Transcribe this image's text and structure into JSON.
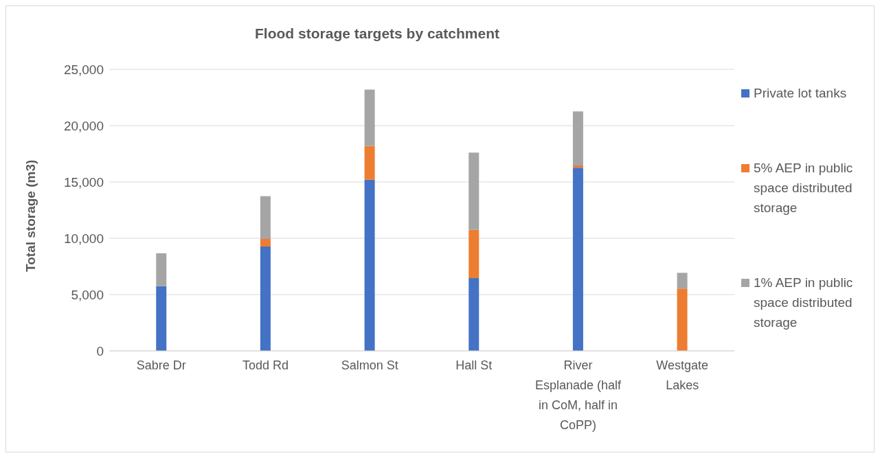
{
  "chart_data": {
    "type": "bar",
    "title": "Flood storage targets by catchment",
    "ylabel": "Total storage (m3)",
    "categories": [
      "Sabre Dr",
      "Todd Rd",
      "Salmon St",
      "Hall St",
      "River Esplanade (half in CoM, half in CoPP)",
      "Westgate Lakes"
    ],
    "stacked": true,
    "series": [
      {
        "name": "Private lot tanks",
        "color": "#4472c4",
        "values": [
          5750,
          9270,
          15200,
          6470,
          16270,
          0
        ]
      },
      {
        "name": "5% AEP in public space distributed storage",
        "color": "#ed7d31",
        "values": [
          0,
          670,
          3000,
          4270,
          200,
          5530
        ]
      },
      {
        "name": "1% AEP in public space distributed storage",
        "color": "#a5a5a5",
        "values": [
          2920,
          3800,
          5000,
          6870,
          4800,
          1400
        ]
      }
    ],
    "ylim": [
      0,
      25000
    ],
    "yticks": [
      {
        "value": 0,
        "label": "0"
      },
      {
        "value": 5000,
        "label": "5,000"
      },
      {
        "value": 10000,
        "label": "10,000"
      },
      {
        "value": 15000,
        "label": "15,000"
      },
      {
        "value": 20000,
        "label": "20,000"
      },
      {
        "value": 25000,
        "label": "25,000"
      }
    ],
    "grid": "y",
    "legend": "right"
  }
}
